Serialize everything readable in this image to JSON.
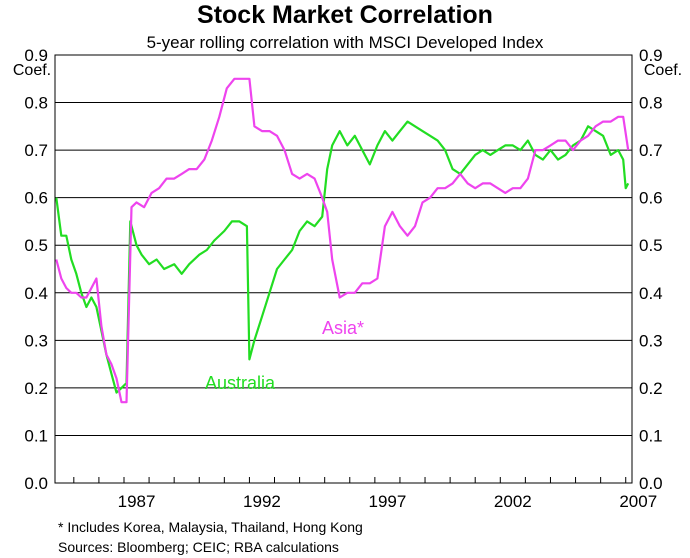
{
  "chart_data": {
    "type": "line",
    "title": "Stock Market Correlation",
    "subtitle": "5-year rolling correlation with MSCI Developed Index",
    "ylabel_left": "Coef.",
    "ylabel_right": "Coef.",
    "ylim": [
      0,
      0.9
    ],
    "xlim": [
      1984.25,
      2007.25
    ],
    "yticks": [
      "0.0",
      "0.1",
      "0.2",
      "0.3",
      "0.4",
      "0.5",
      "0.6",
      "0.7",
      "0.8",
      "0.9"
    ],
    "xticks": [
      "1987",
      "1992",
      "1997",
      "2002",
      "2007"
    ],
    "grid": true,
    "series": [
      {
        "name": "Australia",
        "color": "#22dd22",
        "x": [
          1984.3,
          1984.5,
          1984.7,
          1984.9,
          1985.1,
          1985.3,
          1985.5,
          1985.7,
          1985.9,
          1986.1,
          1986.3,
          1986.5,
          1986.7,
          1986.9,
          1987.1,
          1987.25,
          1987.35,
          1987.5,
          1987.7,
          1988.0,
          1988.3,
          1988.6,
          1989.0,
          1989.3,
          1989.6,
          1990.0,
          1990.3,
          1990.6,
          1991.0,
          1991.3,
          1991.6,
          1991.9,
          1992.0,
          1992.2,
          1992.5,
          1992.8,
          1993.1,
          1993.4,
          1993.7,
          1994.0,
          1994.3,
          1994.6,
          1994.9,
          1995.1,
          1995.3,
          1995.6,
          1995.9,
          1996.2,
          1996.5,
          1996.8,
          1997.1,
          1997.4,
          1997.7,
          1998.0,
          1998.3,
          1998.6,
          1998.9,
          1999.2,
          1999.5,
          1999.8,
          2000.1,
          2000.4,
          2000.7,
          2001.0,
          2001.3,
          2001.6,
          2001.9,
          2002.2,
          2002.5,
          2002.8,
          2003.1,
          2003.4,
          2003.7,
          2004.0,
          2004.3,
          2004.6,
          2004.9,
          2005.2,
          2005.5,
          2005.8,
          2006.1,
          2006.4,
          2006.7,
          2006.9,
          2007.0,
          2007.1
        ],
        "values": [
          0.6,
          0.52,
          0.52,
          0.47,
          0.44,
          0.4,
          0.37,
          0.39,
          0.37,
          0.32,
          0.27,
          0.23,
          0.19,
          0.2,
          0.21,
          0.55,
          0.53,
          0.5,
          0.48,
          0.46,
          0.47,
          0.45,
          0.46,
          0.44,
          0.46,
          0.48,
          0.49,
          0.51,
          0.53,
          0.55,
          0.55,
          0.54,
          0.26,
          0.3,
          0.35,
          0.4,
          0.45,
          0.47,
          0.49,
          0.53,
          0.55,
          0.54,
          0.56,
          0.66,
          0.71,
          0.74,
          0.71,
          0.73,
          0.7,
          0.67,
          0.71,
          0.74,
          0.72,
          0.74,
          0.76,
          0.75,
          0.74,
          0.73,
          0.72,
          0.7,
          0.66,
          0.65,
          0.67,
          0.69,
          0.7,
          0.69,
          0.7,
          0.71,
          0.71,
          0.7,
          0.72,
          0.69,
          0.68,
          0.7,
          0.68,
          0.69,
          0.71,
          0.72,
          0.75,
          0.74,
          0.73,
          0.69,
          0.7,
          0.68,
          0.62,
          0.63
        ]
      },
      {
        "name": "Asia*",
        "color": "#ee44ee",
        "x": [
          1984.3,
          1984.5,
          1984.7,
          1984.9,
          1985.1,
          1985.3,
          1985.5,
          1985.7,
          1985.9,
          1986.1,
          1986.3,
          1986.5,
          1986.7,
          1986.9,
          1987.1,
          1987.3,
          1987.5,
          1987.8,
          1988.1,
          1988.4,
          1988.7,
          1989.0,
          1989.3,
          1989.6,
          1989.9,
          1990.2,
          1990.5,
          1990.8,
          1991.1,
          1991.4,
          1991.7,
          1992.0,
          1992.2,
          1992.5,
          1992.8,
          1993.1,
          1993.4,
          1993.7,
          1994.0,
          1994.3,
          1994.6,
          1994.9,
          1995.1,
          1995.3,
          1995.6,
          1995.9,
          1996.2,
          1996.5,
          1996.8,
          1997.1,
          1997.4,
          1997.7,
          1998.0,
          1998.3,
          1998.6,
          1998.9,
          1999.2,
          1999.5,
          1999.8,
          2000.1,
          2000.4,
          2000.7,
          2001.0,
          2001.3,
          2001.6,
          2001.9,
          2002.2,
          2002.5,
          2002.8,
          2003.1,
          2003.4,
          2003.7,
          2004.0,
          2004.3,
          2004.6,
          2004.9,
          2005.2,
          2005.5,
          2005.8,
          2006.1,
          2006.4,
          2006.7,
          2006.9,
          2007.1
        ],
        "values": [
          0.47,
          0.43,
          0.41,
          0.4,
          0.4,
          0.39,
          0.39,
          0.41,
          0.43,
          0.33,
          0.27,
          0.25,
          0.22,
          0.17,
          0.17,
          0.58,
          0.59,
          0.58,
          0.61,
          0.62,
          0.64,
          0.64,
          0.65,
          0.66,
          0.66,
          0.68,
          0.72,
          0.77,
          0.83,
          0.85,
          0.85,
          0.85,
          0.75,
          0.74,
          0.74,
          0.73,
          0.7,
          0.65,
          0.64,
          0.65,
          0.64,
          0.6,
          0.57,
          0.47,
          0.39,
          0.4,
          0.4,
          0.42,
          0.42,
          0.43,
          0.54,
          0.57,
          0.54,
          0.52,
          0.54,
          0.59,
          0.6,
          0.62,
          0.62,
          0.63,
          0.65,
          0.63,
          0.62,
          0.63,
          0.63,
          0.62,
          0.61,
          0.62,
          0.62,
          0.64,
          0.7,
          0.7,
          0.71,
          0.72,
          0.72,
          0.7,
          0.72,
          0.73,
          0.75,
          0.76,
          0.76,
          0.77,
          0.77,
          0.7
        ]
      }
    ],
    "annotations": {
      "australia_label": "Australia",
      "asia_label": "Asia*"
    },
    "footnote": "*   Includes Korea, Malaysia, Thailand, Hong Kong",
    "sources": "Sources: Bloomberg; CEIC; RBA calculations"
  }
}
